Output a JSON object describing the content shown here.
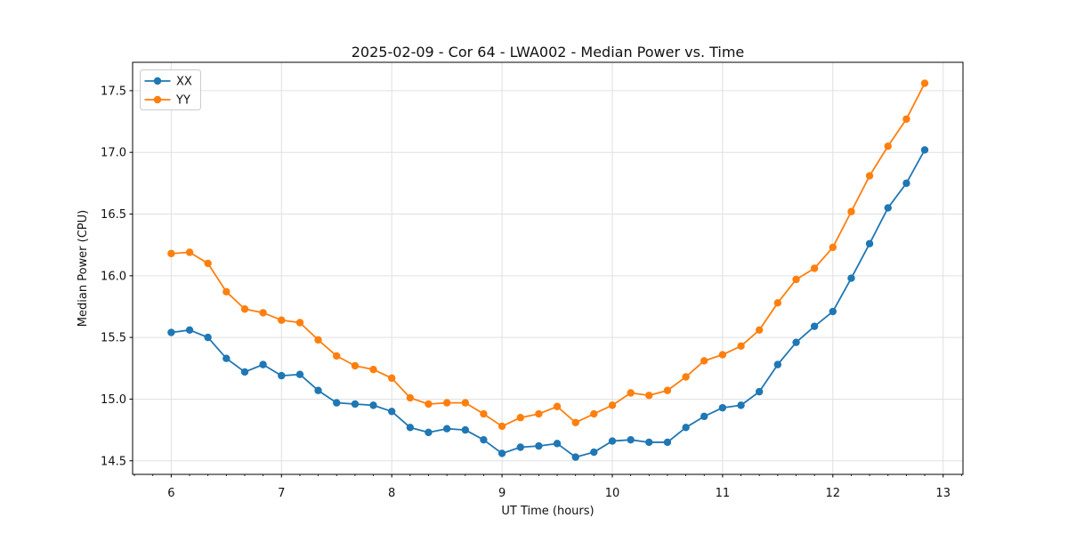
{
  "chart_data": {
    "type": "line",
    "title": "2025-02-09 - Cor 64 - LWA002 - Median Power vs. Time",
    "xlabel": "UT Time (hours)",
    "ylabel": "Median Power (CPU)",
    "xlim": [
      5.65,
      13.18
    ],
    "ylim": [
      14.39,
      17.73
    ],
    "x_ticks": [
      6,
      7,
      8,
      9,
      10,
      11,
      12,
      13
    ],
    "y_ticks": [
      14.5,
      15.0,
      15.5,
      16.0,
      16.5,
      17.0,
      17.5
    ],
    "x_minor_tick_step": 0.1666667,
    "grid": true,
    "grid_color": "#e0e0e0",
    "spine_color": "#000000",
    "background_color": "#ffffff",
    "legend_position": "upper left",
    "x": [
      6.0,
      6.167,
      6.333,
      6.5,
      6.667,
      6.833,
      7.0,
      7.167,
      7.333,
      7.5,
      7.667,
      7.833,
      8.0,
      8.167,
      8.333,
      8.5,
      8.667,
      8.833,
      9.0,
      9.167,
      9.333,
      9.5,
      9.667,
      9.833,
      10.0,
      10.167,
      10.333,
      10.5,
      10.667,
      10.833,
      11.0,
      11.167,
      11.333,
      11.5,
      11.667,
      11.833,
      12.0,
      12.167,
      12.333,
      12.5,
      12.667,
      12.833
    ],
    "series": [
      {
        "name": "XX",
        "color": "#1f77b4",
        "marker": "circle",
        "values": [
          15.54,
          15.56,
          15.5,
          15.33,
          15.22,
          15.28,
          15.19,
          15.2,
          15.07,
          14.97,
          14.96,
          14.95,
          14.9,
          14.77,
          14.73,
          14.76,
          14.75,
          14.67,
          14.56,
          14.61,
          14.62,
          14.64,
          14.53,
          14.57,
          14.66,
          14.67,
          14.65,
          14.65,
          14.77,
          14.86,
          14.93,
          14.95,
          15.06,
          15.28,
          15.46,
          15.59,
          15.71,
          15.98,
          16.26,
          16.55,
          16.75,
          17.02
        ]
      },
      {
        "name": "YY",
        "color": "#ff7f0e",
        "marker": "circle",
        "values": [
          16.18,
          16.19,
          16.1,
          15.87,
          15.73,
          15.7,
          15.64,
          15.62,
          15.48,
          15.35,
          15.27,
          15.24,
          15.17,
          15.01,
          14.96,
          14.97,
          14.97,
          14.88,
          14.78,
          14.85,
          14.88,
          14.94,
          14.81,
          14.88,
          14.95,
          15.05,
          15.03,
          15.07,
          15.18,
          15.31,
          15.36,
          15.43,
          15.56,
          15.78,
          15.97,
          16.06,
          16.23,
          16.52,
          16.81,
          17.05,
          17.27,
          17.56
        ]
      }
    ]
  }
}
